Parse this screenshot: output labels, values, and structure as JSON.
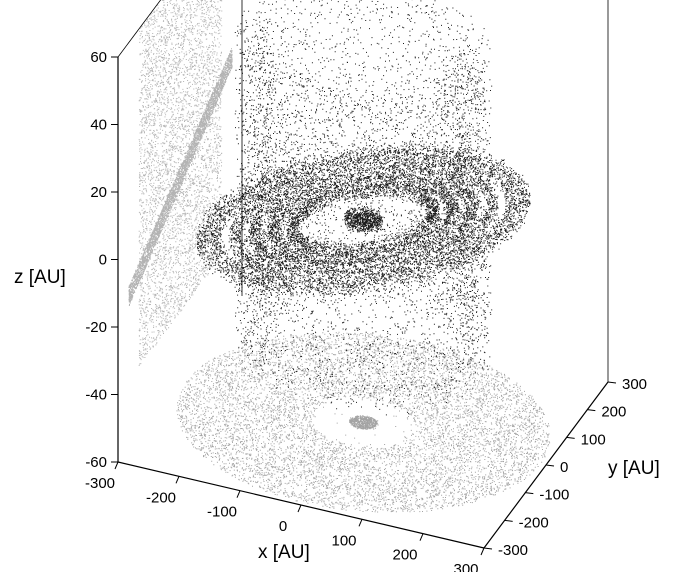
{
  "chart_data": {
    "type": "scatter",
    "title": "",
    "projection": "3d",
    "grid": false,
    "legend": "none",
    "x_axis": {
      "label": "x [AU]",
      "range": [
        -300,
        300
      ],
      "ticks": [
        "-300",
        "-200",
        "-100",
        "0",
        "100",
        "200",
        "300"
      ]
    },
    "y_axis": {
      "label": "y [AU]",
      "range": [
        -300,
        300
      ],
      "ticks": [
        "-300",
        "-200",
        "-100",
        "0",
        "100",
        "200",
        "300"
      ]
    },
    "z_axis": {
      "label": "z [AU]",
      "range": [
        -60,
        60
      ],
      "ticks": [
        "-60",
        "-40",
        "-20",
        "0",
        "20",
        "40",
        "60"
      ]
    },
    "series": [
      {
        "role": "particles-3d",
        "color": "#000000",
        "components": [
          {
            "shape": "ring-disk",
            "radius_range": [
              80,
              250
            ],
            "z_thickness": 4,
            "tilt_deg": 4
          },
          {
            "shape": "inner-core",
            "radius_range": [
              0,
              30
            ],
            "z_range": [
              -2,
              2
            ]
          },
          {
            "shape": "outer-shell",
            "radius": 190,
            "z_range": [
              -40,
              55
            ]
          }
        ]
      },
      {
        "role": "projection-xy",
        "plane": "z=-60",
        "color": "#8c8c8c",
        "radius_range": [
          0,
          290
        ]
      },
      {
        "role": "projection-yz",
        "plane": "x=-300",
        "color": "#9a9a9a",
        "z_range": [
          -40,
          60
        ]
      }
    ]
  }
}
